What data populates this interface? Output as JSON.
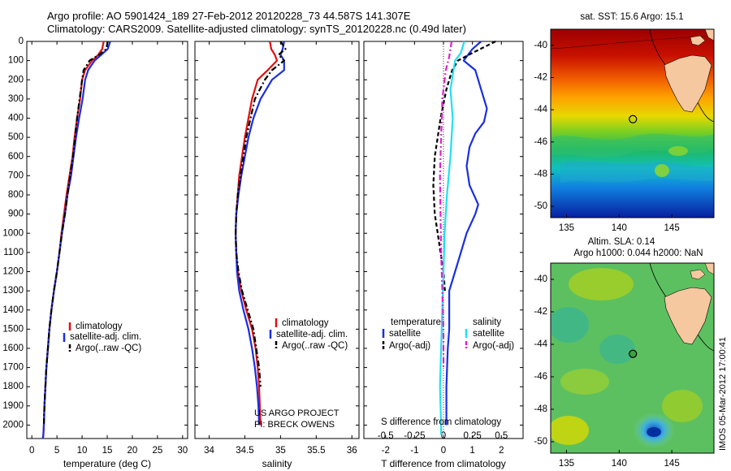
{
  "header": {
    "line1": "Argo profile: AO 5901424_189 27-Feb-2012 20120228_73 44.587S 141.307E",
    "line2": "Climatology: CARS2009. Satellite-adjusted climatology: synTS_20120228.nc (0.49d later)"
  },
  "credits": {
    "project": "US ARGO PROJECT",
    "pi": "PI: BRECK OWENS",
    "stamp": "IMOS 05-Mar-2012 17:00:41"
  },
  "colors": {
    "climatology": "#e01010",
    "satellite": "#1a2ee0",
    "argo": "#000000",
    "sal_sat": "#20e0f0",
    "sal_argo": "#e020d0"
  },
  "chart_data": [
    {
      "type": "line",
      "id": "temperature",
      "xlabel": "temperature (deg C)",
      "ylabel": "",
      "xlim": [
        -1,
        31
      ],
      "ylim": [
        2070,
        0
      ],
      "xticks": [
        0,
        5,
        10,
        15,
        20,
        25,
        30
      ],
      "yticks": [
        0,
        100,
        200,
        300,
        400,
        500,
        600,
        700,
        800,
        900,
        1000,
        1100,
        1200,
        1300,
        1400,
        1500,
        1600,
        1700,
        1800,
        1900,
        2000
      ],
      "legend": [
        "climatology",
        "satellite-adj. clim.",
        "Argo(..raw -QC)"
      ],
      "series": [
        {
          "name": "climatology",
          "style": "solid",
          "color": "#e01010",
          "x": [
            14.3,
            14.0,
            13.2,
            12.0,
            10.6,
            10.0,
            9.6,
            9.0,
            8.5,
            8.1,
            7.5,
            6.9,
            6.4,
            5.9,
            5.5,
            5.0,
            4.4,
            3.9,
            3.5,
            3.2,
            2.9,
            2.7,
            2.5,
            2.4,
            2.3,
            2.2
          ],
          "y": [
            0,
            40,
            70,
            100,
            150,
            200,
            300,
            400,
            500,
            600,
            700,
            800,
            900,
            1000,
            1100,
            1200,
            1300,
            1400,
            1500,
            1600,
            1700,
            1800,
            1900,
            2000,
            2050,
            2070
          ]
        },
        {
          "name": "satellite-adj. clim.",
          "style": "solid",
          "color": "#1a2ee0",
          "x": [
            15.6,
            15.1,
            13.8,
            12.5,
            11.2,
            10.6,
            10.1,
            9.4,
            8.8,
            8.3,
            7.8,
            7.1,
            6.6,
            6.0,
            5.5,
            5.0,
            4.4,
            3.9,
            3.5,
            3.2,
            2.9,
            2.7,
            2.5,
            2.4,
            2.3,
            2.2
          ],
          "y": [
            0,
            40,
            70,
            100,
            150,
            200,
            300,
            400,
            500,
            600,
            700,
            800,
            900,
            1000,
            1100,
            1200,
            1300,
            1400,
            1500,
            1600,
            1700,
            1800,
            1900,
            2000,
            2050,
            2070
          ]
        },
        {
          "name": "Argo(..raw -QC)",
          "style": "dashdot",
          "color": "#000000",
          "x": [
            15.1,
            14.8,
            13.4,
            11.5,
            10.3,
            10.0,
            9.5,
            9.0,
            8.6,
            8.2,
            7.6,
            7.1,
            6.6,
            6.0,
            5.5,
            5.0,
            4.4,
            3.9,
            3.5,
            3.2,
            2.9,
            2.7,
            2.5,
            2.4
          ],
          "y": [
            0,
            40,
            70,
            100,
            150,
            200,
            300,
            400,
            500,
            600,
            700,
            800,
            900,
            1000,
            1100,
            1200,
            1300,
            1400,
            1500,
            1600,
            1700,
            1800,
            1900,
            2000
          ]
        }
      ]
    },
    {
      "type": "line",
      "id": "salinity",
      "xlabel": "salinity",
      "ylabel": "",
      "xlim": [
        33.8,
        36.1
      ],
      "ylim": [
        2070,
        0
      ],
      "xticks": [
        34,
        34.5,
        35,
        35.5,
        36
      ],
      "legend": [
        "climatology",
        "satellite-adj. clim.",
        "Argo(..raw -QC)"
      ],
      "series": [
        {
          "name": "climatology",
          "style": "solid",
          "color": "#e01010",
          "x": [
            34.85,
            34.87,
            34.92,
            34.95,
            34.82,
            34.68,
            34.6,
            34.55,
            34.5,
            34.46,
            34.42,
            34.4,
            34.38,
            34.37,
            34.38,
            34.4,
            34.45,
            34.52,
            34.6,
            34.65,
            34.68,
            34.7,
            34.71,
            34.72
          ],
          "y": [
            0,
            40,
            70,
            100,
            150,
            200,
            300,
            400,
            500,
            600,
            700,
            800,
            900,
            1000,
            1100,
            1200,
            1300,
            1400,
            1500,
            1600,
            1700,
            1800,
            1900,
            2000
          ]
        },
        {
          "name": "satellite-adj. clim.",
          "style": "solid",
          "color": "#1a2ee0",
          "x": [
            35.05,
            35.03,
            35.0,
            35.05,
            35.05,
            34.88,
            34.72,
            34.62,
            34.55,
            34.5,
            34.45,
            34.41,
            34.38,
            34.37,
            34.38,
            34.39,
            34.42,
            34.48,
            34.55,
            34.6,
            34.64,
            34.67,
            34.69,
            34.7
          ],
          "y": [
            0,
            40,
            70,
            100,
            150,
            200,
            300,
            400,
            500,
            600,
            700,
            800,
            900,
            1000,
            1100,
            1200,
            1300,
            1400,
            1500,
            1600,
            1700,
            1800,
            1900,
            2000
          ]
        },
        {
          "name": "Argo(..raw -QC)",
          "style": "dashdot",
          "color": "#000000",
          "x": [
            35.0,
            35.07,
            34.97,
            35.05,
            34.88,
            34.78,
            34.64,
            34.58,
            34.52,
            34.48,
            34.44,
            34.4,
            34.38,
            34.37,
            34.38,
            34.41,
            34.46,
            34.54,
            34.62,
            34.66,
            34.7,
            34.72
          ],
          "y": [
            0,
            40,
            70,
            100,
            150,
            200,
            300,
            400,
            500,
            600,
            700,
            800,
            900,
            1000,
            1100,
            1200,
            1300,
            1400,
            1500,
            1600,
            1700,
            1800
          ]
        }
      ]
    },
    {
      "type": "line",
      "id": "difference",
      "xlabel": "T difference from climatology",
      "xlabel2": "S difference from climatology",
      "xlim": [
        -2.75,
        2.75
      ],
      "ylim": [
        2070,
        0
      ],
      "xticks": [
        -2,
        -1,
        0,
        1,
        2
      ],
      "xticks_s": [
        "-0.5",
        "-0.25",
        "0",
        "0.25",
        "0.5"
      ],
      "legend_title_t": "temperature",
      "legend_title_s": "salinity",
      "legend": [
        "satellite",
        "Argo(-adj)",
        "satellite",
        "Argo(-adj)"
      ],
      "series": [
        {
          "name": "satellite",
          "quantity": "T",
          "style": "solid",
          "color": "#1a2ee0",
          "x": [
            1.3,
            1.0,
            0.7,
            1.1,
            1.3,
            1.5,
            1.4,
            1.1,
            0.9,
            0.8,
            0.9,
            1.2,
            1.1,
            0.8,
            0.6,
            0.4,
            0.2,
            0.2,
            0.2,
            0.15,
            0.1,
            0.1
          ],
          "y": [
            0,
            40,
            100,
            150,
            250,
            350,
            420,
            480,
            550,
            650,
            750,
            850,
            900,
            1000,
            1100,
            1200,
            1300,
            1400,
            1500,
            1600,
            1800,
            2000
          ]
        },
        {
          "name": "Argo(-adj)",
          "quantity": "T",
          "style": "dashed",
          "color": "#000000",
          "x": [
            1.8,
            1.0,
            0.5,
            0.3,
            0.1,
            -0.1,
            -0.2,
            -0.3,
            -0.35,
            -0.3,
            -0.2,
            -0.1,
            0.0,
            0.05
          ],
          "y": [
            0,
            60,
            100,
            150,
            250,
            400,
            500,
            600,
            750,
            900,
            1000,
            1100,
            1200,
            1300
          ]
        },
        {
          "name": "satellite",
          "quantity": "S",
          "style": "solid",
          "color": "#20e0f0",
          "x": [
            0.18,
            0.15,
            0.1,
            0.06,
            0.08,
            0.06,
            0.03,
            0.01,
            0.0,
            -0.01,
            -0.02,
            -0.03,
            -0.02,
            -0.02
          ],
          "y": [
            0,
            60,
            100,
            250,
            400,
            600,
            800,
            1000,
            1200,
            1400,
            1600,
            1800,
            2000,
            2050
          ]
        },
        {
          "name": "Argo(-adj)",
          "quantity": "S",
          "style": "dashdot",
          "color": "#e020d0",
          "x": [
            0.07,
            0.05,
            0.02,
            -0.01,
            -0.02,
            -0.03,
            -0.025,
            -0.02,
            -0.01,
            0.0,
            0.0
          ],
          "y": [
            0,
            80,
            150,
            300,
            500,
            700,
            900,
            1100,
            1300,
            1500,
            1700
          ]
        }
      ]
    },
    {
      "type": "heatmap",
      "id": "sst_map",
      "title": "sat. SST: 15.6  Argo: 15.1",
      "xlim": [
        133.5,
        149
      ],
      "ylim": [
        -50.7,
        -39
      ],
      "xticks": [
        135,
        140,
        145
      ],
      "yticks": [
        -40,
        -42,
        -44,
        -46,
        -48,
        -50
      ],
      "float": {
        "lon": 141.307,
        "lat": -44.587
      }
    },
    {
      "type": "heatmap",
      "id": "sla_map",
      "title": "Altim. SLA: 0.14",
      "subtitle": "Argo h1000: 0.044 h2000: NaN",
      "xlim": [
        133.5,
        149
      ],
      "ylim": [
        -50.7,
        -39
      ],
      "xticks": [
        135,
        140,
        145
      ],
      "yticks": [
        -40,
        -42,
        -44,
        -46,
        -48,
        -50
      ],
      "float": {
        "lon": 141.307,
        "lat": -44.587
      }
    }
  ]
}
